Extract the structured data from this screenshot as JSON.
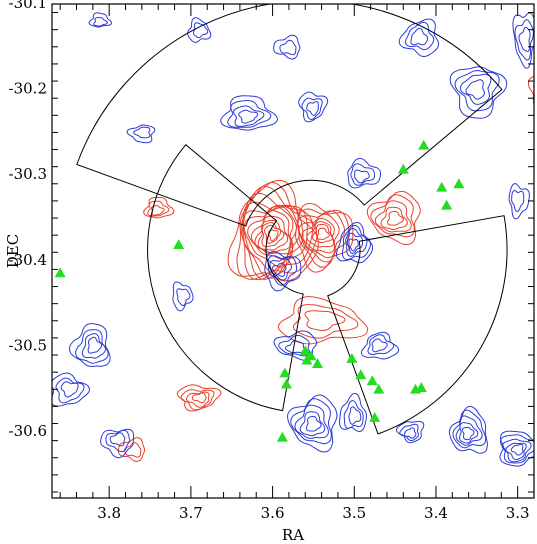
{
  "chart_data": {
    "type": "scatter",
    "title": "",
    "xlabel": "RA",
    "ylabel": "DEC",
    "xlim": [
      3.87,
      3.28
    ],
    "ylim": [
      -30.677,
      -30.1
    ],
    "x_inverted": true,
    "x_ticks": [
      3.8,
      3.7,
      3.6,
      3.5,
      3.4,
      3.3
    ],
    "x_tick_labels": [
      "3.8",
      "3.7",
      "3.6",
      "3.5",
      "3.4",
      "3.3"
    ],
    "y_ticks": [
      -30.1,
      -30.2,
      -30.3,
      -30.4,
      -30.5,
      -30.6
    ],
    "y_tick_labels": [
      "-30.1",
      "-30.2",
      "-30.3",
      "-30.4",
      "-30.5",
      "-30.6"
    ],
    "grid": false,
    "legend": "none",
    "colors": {
      "red_contours": "#e8402a",
      "blue_contours": "#2a3ad8",
      "markers": "#22dd22",
      "outline": "#000000"
    },
    "series": [
      {
        "marker": "triangle",
        "color": "#22dd22",
        "points": [
          [
            3.86,
            -30.414
          ],
          [
            3.715,
            -30.381
          ],
          [
            3.415,
            -30.265
          ],
          [
            3.44,
            -30.293
          ],
          [
            3.393,
            -30.314
          ],
          [
            3.372,
            -30.31
          ],
          [
            3.387,
            -30.335
          ],
          [
            3.56,
            -30.505
          ],
          [
            3.553,
            -30.511
          ],
          [
            3.558,
            -30.516
          ],
          [
            3.545,
            -30.52
          ],
          [
            3.503,
            -30.514
          ],
          [
            3.585,
            -30.531
          ],
          [
            3.583,
            -30.544
          ],
          [
            3.492,
            -30.533
          ],
          [
            3.478,
            -30.54
          ],
          [
            3.47,
            -30.55
          ],
          [
            3.425,
            -30.55
          ],
          [
            3.418,
            -30.548
          ],
          [
            3.475,
            -30.583
          ],
          [
            3.588,
            -30.606
          ]
        ]
      }
    ],
    "annotations": [
      {
        "kind": "wedge_region",
        "center": [
          3.553,
          -30.387
        ],
        "inner_radius": 0.085,
        "outer_radius": 0.305,
        "angles": [
          200,
          320
        ]
      },
      {
        "kind": "wedge_region",
        "center": [
          3.553,
          -30.387
        ],
        "inner_radius": 0.06,
        "outer_radius": 0.24,
        "angles": [
          350,
          430
        ]
      },
      {
        "kind": "wedge_region",
        "center": [
          3.553,
          -30.387
        ],
        "inner_radius": 0.055,
        "outer_radius": 0.2,
        "angles": [
          100,
          220
        ]
      }
    ],
    "contours": {
      "red": [
        {
          "cx": 3.6,
          "cy": -30.37,
          "rx": 0.05,
          "ry": 0.055,
          "levels": 14
        },
        {
          "cx": 3.54,
          "cy": -30.37,
          "rx": 0.035,
          "ry": 0.035,
          "levels": 8
        },
        {
          "cx": 3.45,
          "cy": -30.35,
          "rx": 0.03,
          "ry": 0.028,
          "levels": 5
        },
        {
          "cx": 3.74,
          "cy": -30.34,
          "rx": 0.016,
          "ry": 0.012,
          "levels": 3
        },
        {
          "cx": 3.69,
          "cy": -30.56,
          "rx": 0.024,
          "ry": 0.014,
          "levels": 4
        },
        {
          "cx": 3.77,
          "cy": -30.62,
          "rx": 0.016,
          "ry": 0.012,
          "levels": 2
        },
        {
          "cx": 3.54,
          "cy": -30.47,
          "rx": 0.05,
          "ry": 0.025,
          "levels": 3
        },
        {
          "cx": 3.27,
          "cy": -30.2,
          "rx": 0.016,
          "ry": 0.02,
          "levels": 2
        }
      ],
      "blue": [
        {
          "cx": 3.5,
          "cy": -30.38,
          "rx": 0.02,
          "ry": 0.022,
          "levels": 5
        },
        {
          "cx": 3.59,
          "cy": -30.41,
          "rx": 0.022,
          "ry": 0.02,
          "levels": 4
        },
        {
          "cx": 3.55,
          "cy": -30.59,
          "rx": 0.028,
          "ry": 0.03,
          "levels": 5
        },
        {
          "cx": 3.63,
          "cy": -30.23,
          "rx": 0.03,
          "ry": 0.02,
          "levels": 4
        },
        {
          "cx": 3.55,
          "cy": -30.22,
          "rx": 0.016,
          "ry": 0.016,
          "levels": 3
        },
        {
          "cx": 3.58,
          "cy": -30.15,
          "rx": 0.016,
          "ry": 0.012,
          "levels": 2
        },
        {
          "cx": 3.69,
          "cy": -30.13,
          "rx": 0.013,
          "ry": 0.013,
          "levels": 2
        },
        {
          "cx": 3.35,
          "cy": -30.2,
          "rx": 0.03,
          "ry": 0.03,
          "levels": 4
        },
        {
          "cx": 3.42,
          "cy": -30.14,
          "rx": 0.022,
          "ry": 0.02,
          "levels": 3
        },
        {
          "cx": 3.49,
          "cy": -30.3,
          "rx": 0.02,
          "ry": 0.015,
          "levels": 3
        },
        {
          "cx": 3.29,
          "cy": -30.14,
          "rx": 0.014,
          "ry": 0.03,
          "levels": 3
        },
        {
          "cx": 3.82,
          "cy": -30.5,
          "rx": 0.022,
          "ry": 0.025,
          "levels": 4
        },
        {
          "cx": 3.85,
          "cy": -30.55,
          "rx": 0.022,
          "ry": 0.018,
          "levels": 3
        },
        {
          "cx": 3.79,
          "cy": -30.61,
          "rx": 0.02,
          "ry": 0.015,
          "levels": 3
        },
        {
          "cx": 3.36,
          "cy": -30.6,
          "rx": 0.022,
          "ry": 0.025,
          "levels": 5
        },
        {
          "cx": 3.3,
          "cy": -30.62,
          "rx": 0.024,
          "ry": 0.02,
          "levels": 5
        },
        {
          "cx": 3.43,
          "cy": -30.6,
          "rx": 0.015,
          "ry": 0.012,
          "levels": 3
        },
        {
          "cx": 3.5,
          "cy": -30.58,
          "rx": 0.016,
          "ry": 0.02,
          "levels": 3
        },
        {
          "cx": 3.71,
          "cy": -30.44,
          "rx": 0.012,
          "ry": 0.015,
          "levels": 2
        },
        {
          "cx": 3.76,
          "cy": -30.25,
          "rx": 0.015,
          "ry": 0.01,
          "levels": 2
        },
        {
          "cx": 3.47,
          "cy": -30.5,
          "rx": 0.02,
          "ry": 0.015,
          "levels": 3
        },
        {
          "cx": 3.3,
          "cy": -30.33,
          "rx": 0.012,
          "ry": 0.018,
          "levels": 2
        },
        {
          "cx": 3.57,
          "cy": -30.5,
          "rx": 0.025,
          "ry": 0.015,
          "levels": 3
        },
        {
          "cx": 3.81,
          "cy": -30.12,
          "rx": 0.012,
          "ry": 0.008,
          "levels": 2
        }
      ]
    }
  }
}
